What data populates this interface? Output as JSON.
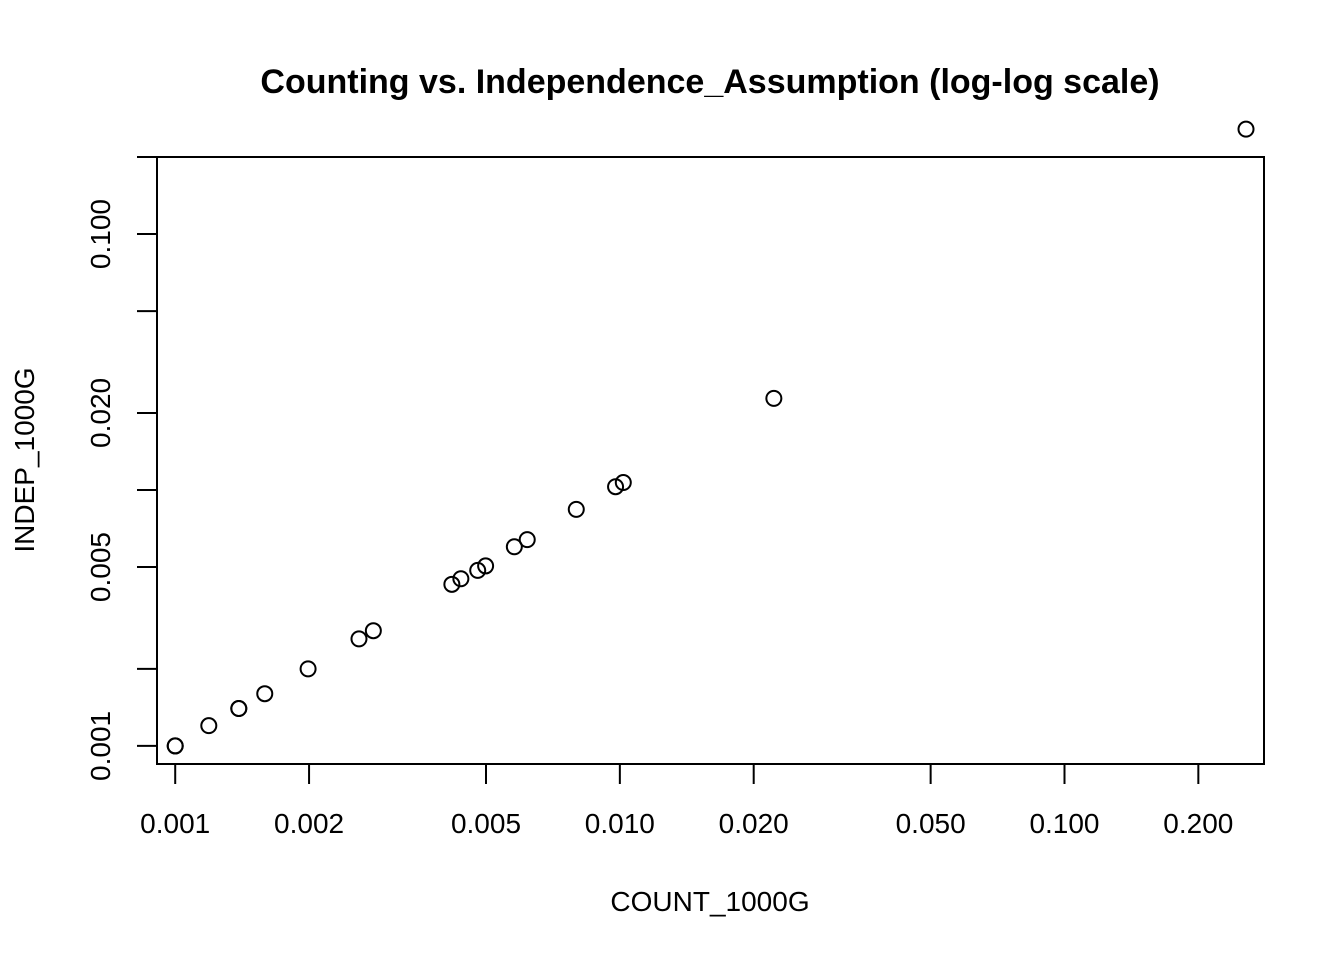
{
  "chart_data": {
    "type": "scatter",
    "title": "Counting vs. Independence_Assumption (log-log scale)",
    "xlabel": "COUNT_1000G",
    "ylabel": "INDEP_1000G",
    "log_x": true,
    "log_y": true,
    "xlim": [
      0.00091,
      0.281
    ],
    "ylim": [
      0.00085,
      0.2
    ],
    "x_ticks": [
      {
        "value": 0.001,
        "label": "0.001"
      },
      {
        "value": 0.002,
        "label": "0.002"
      },
      {
        "value": 0.005,
        "label": "0.005"
      },
      {
        "value": 0.01,
        "label": "0.010"
      },
      {
        "value": 0.02,
        "label": "0.020"
      },
      {
        "value": 0.05,
        "label": "0.050"
      },
      {
        "value": 0.1,
        "label": "0.100"
      },
      {
        "value": 0.2,
        "label": "0.200"
      }
    ],
    "y_ticks": [
      {
        "value": 0.001,
        "label": "0.001"
      },
      {
        "value": 0.002,
        "label": ""
      },
      {
        "value": 0.005,
        "label": "0.005"
      },
      {
        "value": 0.01,
        "label": ""
      },
      {
        "value": 0.02,
        "label": "0.020"
      },
      {
        "value": 0.05,
        "label": ""
      },
      {
        "value": 0.1,
        "label": "0.100"
      },
      {
        "value": 0.2,
        "label": ""
      }
    ],
    "grid": false,
    "marker": "open-circle",
    "points": [
      {
        "x": 0.001,
        "y": 0.001
      },
      {
        "x": 0.001,
        "y": 0.001
      },
      {
        "x": 0.00119,
        "y": 0.0012
      },
      {
        "x": 0.00139,
        "y": 0.0014
      },
      {
        "x": 0.00139,
        "y": 0.0014
      },
      {
        "x": 0.00159,
        "y": 0.0016
      },
      {
        "x": 0.00199,
        "y": 0.002
      },
      {
        "x": 0.00259,
        "y": 0.00262
      },
      {
        "x": 0.00279,
        "y": 0.00282
      },
      {
        "x": 0.00419,
        "y": 0.00428
      },
      {
        "x": 0.00439,
        "y": 0.0045
      },
      {
        "x": 0.00479,
        "y": 0.00485
      },
      {
        "x": 0.00499,
        "y": 0.00505
      },
      {
        "x": 0.00579,
        "y": 0.006
      },
      {
        "x": 0.00619,
        "y": 0.0064
      },
      {
        "x": 0.00798,
        "y": 0.0084
      },
      {
        "x": 0.00978,
        "y": 0.0103
      },
      {
        "x": 0.01018,
        "y": 0.0107
      },
      {
        "x": 0.0222,
        "y": 0.0228
      },
      {
        "x": 0.256,
        "y": 0.257
      }
    ]
  }
}
